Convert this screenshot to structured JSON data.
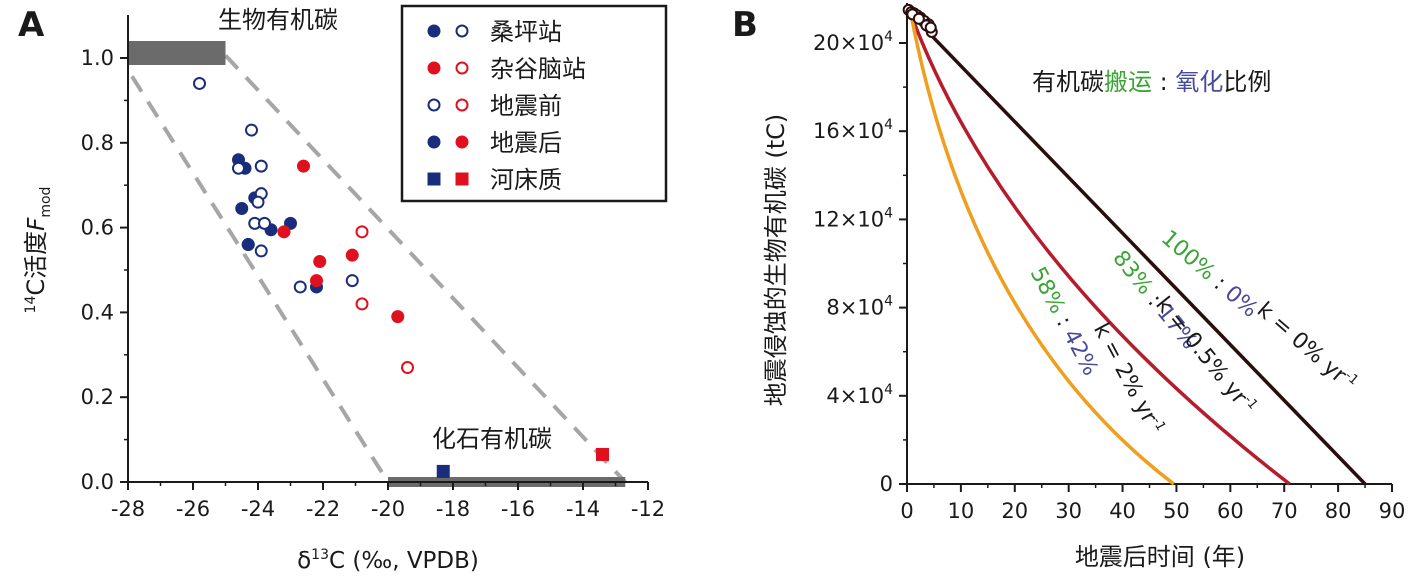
{
  "chart_data": [
    {
      "panel_label": "A",
      "type": "scatter",
      "xlabel_prefix": "δ",
      "xlabel_sup": "13",
      "xlabel_rest": "C (‰, VPDB)",
      "ylabel_sup": "14",
      "ylabel_main": "C活度",
      "ylabel_var": "F",
      "ylabel_sub": "mod",
      "xlim": [
        -28,
        -12
      ],
      "ylim": [
        0,
        1.05
      ],
      "xticks": [
        -28,
        -26,
        -24,
        -22,
        -20,
        -18,
        -16,
        -14,
        -12
      ],
      "xtick_labels": [
        "-28",
        "-26",
        "-24",
        "-22",
        "-20",
        "-18",
        "-16",
        "-14",
        "-12"
      ],
      "yticks": [
        0,
        0.2,
        0.4,
        0.6,
        0.8,
        1.0
      ],
      "ytick_labels": [
        "0.0",
        "0.2",
        "0.4",
        "0.6",
        "0.8",
        "1.0"
      ],
      "annotations": {
        "biospheric": "生物有机碳",
        "petrogenic": "化石有机碳"
      },
      "end_members": {
        "biospheric": {
          "x": [
            -28,
            -25
          ],
          "y": 1.02
        },
        "petrogenic": {
          "x": [
            -20,
            -12.7
          ],
          "y": 0.0
        }
      },
      "mixing_envelope": {
        "upper": [
          [
            -25,
            1.02
          ],
          [
            -12.7,
            0.0
          ]
        ],
        "lower": [
          [
            -28,
            0.985
          ],
          [
            -20,
            0.0
          ]
        ]
      },
      "legend": [
        {
          "label": "桑坪站",
          "markers": [
            "filled-blue",
            "open-blue"
          ]
        },
        {
          "label": "杂谷脑站",
          "markers": [
            "filled-red",
            "open-red"
          ]
        },
        {
          "label": "地震前",
          "markers": [
            "open-blue",
            "open-red"
          ]
        },
        {
          "label": "地震后",
          "markers": [
            "filled-blue",
            "filled-red"
          ]
        },
        {
          "label": "河床质",
          "markers": [
            "square-blue",
            "square-red"
          ]
        }
      ],
      "series": [
        {
          "name": "桑坪站 地震后",
          "color": "#1a2d7c",
          "marker": "filled-circle",
          "x": [
            -24.6,
            -24.4,
            -24.5,
            -24.1,
            -24.3,
            -23.6,
            -23.0,
            -24.3,
            -22.2
          ],
          "y": [
            0.76,
            0.74,
            0.645,
            0.67,
            0.56,
            0.595,
            0.61,
            0.56,
            0.46
          ]
        },
        {
          "name": "桑坪站 地震前",
          "color": "#1a2d7c",
          "marker": "open-circle",
          "x": [
            -25.8,
            -24.2,
            -24.6,
            -23.9,
            -23.9,
            -24.1,
            -23.8,
            -24.0,
            -23.9,
            -22.7,
            -21.1
          ],
          "y": [
            0.94,
            0.83,
            0.74,
            0.745,
            0.68,
            0.61,
            0.61,
            0.66,
            0.545,
            0.46,
            0.475
          ]
        },
        {
          "name": "杂谷脑站 地震后",
          "color": "#e0101e",
          "marker": "filled-circle",
          "x": [
            -22.6,
            -23.2,
            -22.1,
            -22.2,
            -21.1,
            -19.7
          ],
          "y": [
            0.745,
            0.59,
            0.52,
            0.475,
            0.535,
            0.39
          ]
        },
        {
          "name": "杂谷脑站 地震前",
          "color": "#e0101e",
          "marker": "open-circle",
          "x": [
            -20.8,
            -20.8,
            -19.4
          ],
          "y": [
            0.59,
            0.42,
            0.27
          ]
        },
        {
          "name": "桑坪站 河床质",
          "color": "#1a2d7c",
          "marker": "filled-square",
          "x": [
            -18.3
          ],
          "y": [
            0.025
          ]
        },
        {
          "name": "杂谷脑站 河床质",
          "color": "#e0101e",
          "marker": "filled-square",
          "x": [
            -13.4
          ],
          "y": [
            0.065
          ]
        }
      ]
    },
    {
      "panel_label": "B",
      "type": "line",
      "xlabel": "地震后时间 (年)",
      "ylabel": "地震侵蚀的生物有机碳 (tC)",
      "xlim": [
        0,
        90
      ],
      "ylim": [
        0,
        220000
      ],
      "xticks": [
        0,
        10,
        20,
        30,
        40,
        50,
        60,
        70,
        80,
        90
      ],
      "xtick_labels": [
        "0",
        "10",
        "20",
        "30",
        "40",
        "50",
        "60",
        "70",
        "80",
        "90"
      ],
      "yticks": [
        0,
        40000,
        80000,
        120000,
        160000,
        200000
      ],
      "ytick_mantissa": [
        "",
        "4",
        "8",
        "12",
        "16",
        "20"
      ],
      "ytick_zero": "0",
      "ytick_suffix": "×10",
      "ytick_exp": "4",
      "ratio_title": {
        "p1": "有机碳",
        "p2": "搬运",
        "p3": " : ",
        "p4": "氧化",
        "p5": "比例"
      },
      "series": [
        {
          "name": "k = 0% yr⁻¹",
          "color": "#2a0d0d",
          "x": [
            0,
            85
          ],
          "y": [
            213000,
            0
          ],
          "label": {
            "transport": "100%",
            "sep": " : ",
            "oxidation": "0%",
            "k": "k = 0% yr",
            "unit_sup": "-1"
          }
        },
        {
          "name": "k = 0.5% yr⁻¹",
          "color": "#b51c2c",
          "x": [
            0,
            71
          ],
          "y": [
            213000,
            0
          ],
          "label": {
            "transport": "83%",
            "sep": " : ",
            "oxidation": "17%",
            "k": "k = 0.5% yr",
            "unit_sup": "-1"
          }
        },
        {
          "name": "k = 2% yr⁻¹",
          "color": "#ef9e1d",
          "x": [
            0,
            49.5
          ],
          "y": [
            213000,
            0
          ],
          "label": {
            "transport": "58%",
            "sep": " : ",
            "oxidation": "42%",
            "k": "k = 2% yr",
            "unit_sup": "-1"
          }
        }
      ],
      "start_markers": {
        "x": [
          0.3,
          0.8,
          1.3,
          1.9,
          2.5,
          3.2,
          4.0,
          4.6,
          1.0,
          2.2,
          3.6,
          4.4
        ],
        "y": [
          215000,
          214000,
          213500,
          212500,
          211500,
          210000,
          208500,
          205000,
          213000,
          211000,
          208000,
          207000
        ]
      },
      "colors": {
        "transport": "#3aa535",
        "oxidation": "#4a4a9a"
      }
    }
  ]
}
